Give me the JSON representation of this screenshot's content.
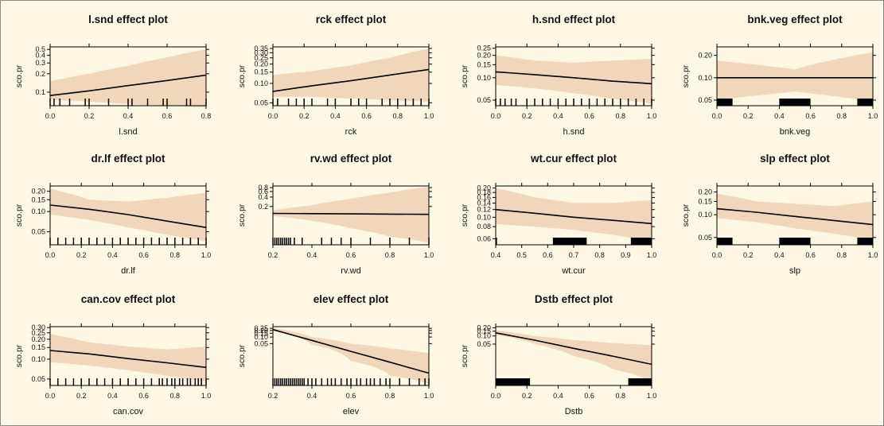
{
  "colors": {
    "background": "#fdf7e3",
    "band": "#f0d6bb",
    "line": "#000000",
    "rug": "#000000"
  },
  "chart_data": [
    {
      "type": "line",
      "title": "l.snd effect plot",
      "xlabel": "l.snd",
      "ylabel": "sco.pr",
      "xlim": [
        0,
        0.8
      ],
      "xticks": [
        0.0,
        0.2,
        0.4,
        0.6,
        0.8
      ],
      "xtick_labels": [
        "0.0",
        "0.2",
        "0.4",
        "0.6",
        "0.8"
      ],
      "ylog": true,
      "ylim": [
        0.06,
        0.55
      ],
      "yticks": [
        0.1,
        0.2,
        0.3,
        0.4,
        0.5
      ],
      "ytick_labels": [
        "0.1",
        "0.2",
        "0.3",
        "0.4",
        "0.5"
      ],
      "x": [
        0,
        0.2,
        0.4,
        0.6,
        0.8
      ],
      "fit": [
        0.088,
        0.105,
        0.128,
        0.155,
        0.19
      ],
      "lower": [
        0.075,
        0.07,
        0.064,
        0.06,
        0.056
      ],
      "upper": [
        0.15,
        0.2,
        0.27,
        0.37,
        0.5
      ],
      "rug": [
        0.0,
        0.02,
        0.05,
        0.1,
        0.18,
        0.2,
        0.3,
        0.4,
        0.42,
        0.5,
        0.58,
        0.6,
        0.7,
        0.72,
        0.8
      ]
    },
    {
      "type": "line",
      "title": "rck effect plot",
      "xlabel": "rck",
      "ylabel": "sco.pr",
      "xlim": [
        0,
        1
      ],
      "xticks": [
        0.0,
        0.2,
        0.4,
        0.6,
        0.8,
        1.0
      ],
      "xtick_labels": [
        "0.0",
        "0.2",
        "0.4",
        "0.6",
        "0.8",
        "1.0"
      ],
      "ylog": true,
      "ylim": [
        0.045,
        0.37
      ],
      "yticks": [
        0.05,
        0.1,
        0.15,
        0.2,
        0.25,
        0.3,
        0.35
      ],
      "ytick_labels": [
        "0.05",
        "0.10",
        "0.15",
        "0.20",
        "0.25",
        "0.30",
        "0.35"
      ],
      "x": [
        0,
        0.25,
        0.5,
        0.75,
        1.0
      ],
      "fit": [
        0.075,
        0.092,
        0.11,
        0.135,
        0.165
      ],
      "lower": [
        0.062,
        0.062,
        0.058,
        0.055,
        0.052
      ],
      "upper": [
        0.135,
        0.155,
        0.19,
        0.25,
        0.35
      ],
      "rug": [
        0.0,
        0.03,
        0.1,
        0.15,
        0.2,
        0.25,
        0.35,
        0.4,
        0.5,
        0.55,
        0.6,
        0.7,
        0.75,
        0.8,
        0.85,
        0.9,
        0.95,
        1.0
      ]
    },
    {
      "type": "line",
      "title": "h.snd effect plot",
      "xlabel": "h.snd",
      "ylabel": "sco.pr",
      "xlim": [
        0,
        1
      ],
      "xticks": [
        0.0,
        0.2,
        0.4,
        0.6,
        0.8,
        1.0
      ],
      "xtick_labels": [
        "0.0",
        "0.2",
        "0.4",
        "0.6",
        "0.8",
        "1.0"
      ],
      "ylog": true,
      "ylim": [
        0.042,
        0.26
      ],
      "yticks": [
        0.05,
        0.1,
        0.15,
        0.2,
        0.25
      ],
      "ytick_labels": [
        "0.05",
        "0.10",
        "0.15",
        "0.20",
        "0.25"
      ],
      "x": [
        0,
        0.25,
        0.5,
        0.75,
        1.0
      ],
      "fit": [
        0.12,
        0.11,
        0.1,
        0.09,
        0.083
      ],
      "lower": [
        0.08,
        0.072,
        0.062,
        0.052,
        0.045
      ],
      "upper": [
        0.2,
        0.17,
        0.16,
        0.17,
        0.18
      ],
      "rug": [
        0.0,
        0.03,
        0.06,
        0.1,
        0.13,
        0.2,
        0.25,
        0.3,
        0.35,
        0.4,
        0.45,
        0.5,
        0.55,
        0.6,
        0.65,
        0.7,
        0.75,
        0.8,
        0.85,
        0.9,
        0.95,
        1.0
      ]
    },
    {
      "type": "line",
      "title": "bnk.veg effect plot",
      "xlabel": "bnk.veg",
      "ylabel": "sco.pr",
      "xlim": [
        0,
        1
      ],
      "xticks": [
        0.0,
        0.2,
        0.4,
        0.6,
        0.8,
        1.0
      ],
      "xtick_labels": [
        "0.0",
        "0.2",
        "0.4",
        "0.6",
        "0.8",
        "1.0"
      ],
      "ylog": true,
      "ylim": [
        0.042,
        0.26
      ],
      "yticks": [
        0.05,
        0.1,
        0.2
      ],
      "ytick_labels": [
        "0.05",
        "0.10",
        "0.20"
      ],
      "x": [
        0,
        0.5,
        1.0
      ],
      "fit": [
        0.1,
        0.1,
        0.1
      ],
      "lower": [
        0.05,
        0.065,
        0.048
      ],
      "upper": [
        0.17,
        0.13,
        0.22
      ],
      "rug_ranges": [
        [
          0.0,
          0.1
        ],
        [
          0.4,
          0.6
        ],
        [
          0.9,
          1.0
        ]
      ]
    },
    {
      "type": "line",
      "title": "dr.lf effect plot",
      "xlabel": "dr.lf",
      "ylabel": "sco.pr",
      "xlim": [
        0,
        1
      ],
      "xticks": [
        0.0,
        0.2,
        0.4,
        0.6,
        0.8,
        1.0
      ],
      "xtick_labels": [
        "0.0",
        "0.2",
        "0.4",
        "0.6",
        "0.8",
        "1.0"
      ],
      "ylog": true,
      "ylim": [
        0.032,
        0.24
      ],
      "yticks": [
        0.05,
        0.1,
        0.15,
        0.2
      ],
      "ytick_labels": [
        "0.05",
        "0.10",
        "0.15",
        "0.20"
      ],
      "x": [
        0,
        0.25,
        0.5,
        0.75,
        1.0
      ],
      "fit": [
        0.125,
        0.108,
        0.09,
        0.072,
        0.058
      ],
      "lower": [
        0.09,
        0.075,
        0.058,
        0.045,
        0.036
      ],
      "upper": [
        0.22,
        0.15,
        0.14,
        0.16,
        0.19
      ],
      "rug": [
        0.0,
        0.05,
        0.1,
        0.15,
        0.2,
        0.25,
        0.3,
        0.35,
        0.4,
        0.45,
        0.5,
        0.55,
        0.6,
        0.65,
        0.7,
        0.75,
        0.8,
        0.85,
        0.9,
        0.95,
        1.0
      ]
    },
    {
      "type": "line",
      "title": "rv.wd effect plot",
      "xlabel": "rv.wd",
      "ylabel": "sco.pr",
      "xlim": [
        0.2,
        1.0
      ],
      "xticks": [
        0.2,
        0.4,
        0.6,
        0.8,
        1.0
      ],
      "xtick_labels": [
        "0.2",
        "0.4",
        "0.6",
        "0.8",
        "1.0"
      ],
      "ylog": true,
      "ylim": [
        0.012,
        0.9
      ],
      "yticks": [
        0.2,
        0.4,
        0.6,
        0.8
      ],
      "ytick_labels": [
        "0.2",
        "0.4",
        "0.6",
        "0.8"
      ],
      "x": [
        0.2,
        0.4,
        0.6,
        0.8,
        1.0
      ],
      "fit": [
        0.12,
        0.118,
        0.116,
        0.114,
        0.112
      ],
      "lower": [
        0.1,
        0.07,
        0.04,
        0.022,
        0.014
      ],
      "upper": [
        0.15,
        0.22,
        0.35,
        0.55,
        0.85
      ],
      "rug": [
        0.2,
        0.21,
        0.22,
        0.23,
        0.24,
        0.25,
        0.26,
        0.27,
        0.28,
        0.29,
        0.31,
        0.35,
        0.45,
        0.5,
        0.55,
        0.6,
        0.7,
        0.8,
        0.9,
        1.0
      ]
    },
    {
      "type": "line",
      "title": "wt.cur effect plot",
      "xlabel": "wt.cur",
      "ylabel": "sco.pr",
      "xlim": [
        0.4,
        1.0
      ],
      "xticks": [
        0.4,
        0.5,
        0.6,
        0.7,
        0.8,
        0.9,
        1.0
      ],
      "xtick_labels": [
        "0.4",
        "0.5",
        "0.6",
        "0.7",
        "0.8",
        "0.9",
        "1.0"
      ],
      "ylog": true,
      "ylim": [
        0.052,
        0.21
      ],
      "yticks": [
        0.06,
        0.08,
        0.1,
        0.12,
        0.14,
        0.16,
        0.18,
        0.2
      ],
      "ytick_labels": [
        "0.06",
        "0.08",
        "0.10",
        "0.12",
        "0.14",
        "0.16",
        "0.18",
        "0.20"
      ],
      "x": [
        0.4,
        0.55,
        0.7,
        0.85,
        1.0
      ],
      "fit": [
        0.12,
        0.11,
        0.1,
        0.093,
        0.086
      ],
      "lower": [
        0.085,
        0.08,
        0.074,
        0.066,
        0.056
      ],
      "upper": [
        0.2,
        0.16,
        0.14,
        0.14,
        0.15
      ],
      "rug_ranges": [
        [
          0.4,
          0.405
        ],
        [
          0.62,
          0.75
        ],
        [
          0.92,
          1.0
        ]
      ]
    },
    {
      "type": "line",
      "title": "slp effect plot",
      "xlabel": "slp",
      "ylabel": "sco.pr",
      "xlim": [
        0,
        1
      ],
      "xticks": [
        0.0,
        0.2,
        0.4,
        0.6,
        0.8,
        1.0
      ],
      "xtick_labels": [
        "0.0",
        "0.2",
        "0.4",
        "0.6",
        "0.8",
        "1.0"
      ],
      "ylog": true,
      "ylim": [
        0.04,
        0.24
      ],
      "yticks": [
        0.05,
        0.1,
        0.15,
        0.2
      ],
      "ytick_labels": [
        "0.05",
        "0.10",
        "0.15",
        "0.20"
      ],
      "x": [
        0,
        0.25,
        0.5,
        0.75,
        1.0
      ],
      "fit": [
        0.12,
        0.108,
        0.095,
        0.084,
        0.074
      ],
      "lower": [
        0.09,
        0.08,
        0.066,
        0.056,
        0.046
      ],
      "upper": [
        0.19,
        0.15,
        0.14,
        0.13,
        0.15
      ],
      "rug_ranges": [
        [
          0.0,
          0.1
        ],
        [
          0.4,
          0.6
        ],
        [
          0.9,
          1.0
        ]
      ]
    },
    {
      "type": "line",
      "title": "can.cov effect plot",
      "xlabel": "can.cov",
      "ylabel": "sco.pr",
      "xlim": [
        0,
        1
      ],
      "xticks": [
        0.0,
        0.2,
        0.4,
        0.6,
        0.8,
        1.0
      ],
      "xtick_labels": [
        "0.0",
        "0.2",
        "0.4",
        "0.6",
        "0.8",
        "1.0"
      ],
      "ylog": true,
      "ylim": [
        0.04,
        0.31
      ],
      "yticks": [
        0.05,
        0.1,
        0.15,
        0.2,
        0.25,
        0.3
      ],
      "ytick_labels": [
        "0.05",
        "0.10",
        "0.15",
        "0.20",
        "0.25",
        "0.30"
      ],
      "x": [
        0,
        0.25,
        0.5,
        0.75,
        1.0
      ],
      "fit": [
        0.135,
        0.12,
        0.102,
        0.088,
        0.075
      ],
      "lower": [
        0.09,
        0.08,
        0.068,
        0.056,
        0.045
      ],
      "upper": [
        0.24,
        0.18,
        0.155,
        0.14,
        0.155
      ],
      "rug": [
        0.0,
        0.05,
        0.1,
        0.15,
        0.2,
        0.25,
        0.3,
        0.35,
        0.4,
        0.45,
        0.5,
        0.55,
        0.6,
        0.65,
        0.7,
        0.72,
        0.75,
        0.78,
        0.8,
        0.83,
        0.85,
        0.88,
        0.9,
        0.93,
        0.95,
        0.97,
        1.0
      ]
    },
    {
      "type": "line",
      "title": "elev effect plot",
      "xlabel": "elev",
      "ylabel": "sco.pr",
      "xlim": [
        0.2,
        1.0
      ],
      "xticks": [
        0.2,
        0.4,
        0.6,
        0.8,
        1.0
      ],
      "xtick_labels": [
        "0.2",
        "0.4",
        "0.6",
        "0.8",
        "1.0"
      ],
      "ylog": true,
      "ylim": [
        0.0006,
        0.3
      ],
      "yticks": [
        0.05,
        0.1,
        0.15,
        0.2,
        0.25
      ],
      "ytick_labels": [
        "0.05",
        "0.10",
        "0.15",
        "0.20",
        "0.25"
      ],
      "x": [
        0.2,
        0.4,
        0.6,
        0.8,
        1.0
      ],
      "fit": [
        0.22,
        0.07,
        0.022,
        0.007,
        0.0022
      ],
      "lower": [
        0.19,
        0.045,
        0.008,
        0.0017,
        0.0007
      ],
      "upper": [
        0.26,
        0.1,
        0.05,
        0.03,
        0.018
      ],
      "rug": [
        0.2,
        0.21,
        0.22,
        0.23,
        0.24,
        0.25,
        0.26,
        0.27,
        0.28,
        0.29,
        0.3,
        0.31,
        0.32,
        0.33,
        0.34,
        0.35,
        0.36,
        0.38,
        0.4,
        0.42,
        0.45,
        0.48,
        0.5,
        0.52,
        0.55,
        0.58,
        0.6,
        0.63,
        0.65,
        0.68,
        0.7,
        0.72,
        0.75,
        0.78,
        0.8,
        0.85,
        0.9,
        0.95,
        0.98,
        1.0
      ]
    },
    {
      "type": "line",
      "title": "Dstb effect plot",
      "xlabel": "Dstb",
      "ylabel": "sco.pr",
      "xlim": [
        0,
        1
      ],
      "xticks": [
        0.0,
        0.2,
        0.4,
        0.6,
        0.8,
        1.0
      ],
      "xtick_labels": [
        "0.0",
        "0.2",
        "0.4",
        "0.6",
        "0.8",
        "1.0"
      ],
      "ylog": true,
      "ylim": [
        0.0015,
        0.22
      ],
      "yticks": [
        0.05,
        0.1,
        0.15,
        0.2
      ],
      "ytick_labels": [
        "0.05",
        "0.10",
        "0.15",
        "0.20"
      ],
      "x": [
        0,
        0.25,
        0.5,
        0.75,
        1.0
      ],
      "fit": [
        0.13,
        0.07,
        0.035,
        0.018,
        0.009
      ],
      "lower": [
        0.11,
        0.05,
        0.018,
        0.006,
        0.002
      ],
      "upper": [
        0.16,
        0.1,
        0.07,
        0.055,
        0.045
      ],
      "rug_ranges": [
        [
          0.0,
          0.22
        ],
        [
          0.85,
          1.0
        ]
      ]
    }
  ]
}
